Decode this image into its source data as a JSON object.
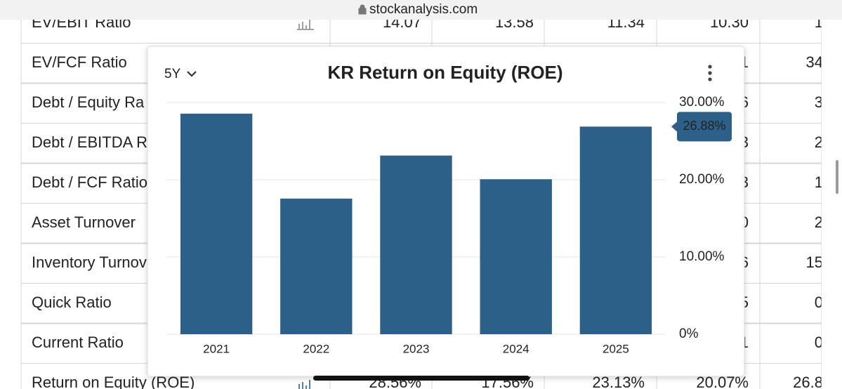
{
  "browser": {
    "url": "stockanalysis.com"
  },
  "table": {
    "rows": [
      {
        "label": "EV/EBIT Ratio",
        "cells": [
          "14.07",
          "13.58",
          "11.34",
          "10.30",
          "1"
        ]
      },
      {
        "label": "EV/FCF Ratio",
        "cells": [
          null,
          null,
          null,
          "1",
          "34"
        ]
      },
      {
        "label": "Debt / Equity Ra",
        "cells": [
          null,
          null,
          null,
          "6",
          "3"
        ]
      },
      {
        "label": "Debt / EBITDA R",
        "cells": [
          null,
          null,
          null,
          "3",
          "2"
        ]
      },
      {
        "label": "Debt / FCF Ratio",
        "cells": [
          null,
          null,
          null,
          "3",
          "1"
        ]
      },
      {
        "label": "Asset Turnover",
        "cells": [
          null,
          null,
          null,
          "0",
          "2"
        ]
      },
      {
        "label": "Inventory Turnov",
        "cells": [
          null,
          null,
          null,
          "6",
          "15"
        ]
      },
      {
        "label": "Quick Ratio",
        "cells": [
          null,
          null,
          null,
          "5",
          "0"
        ]
      },
      {
        "label": "Current Ratio",
        "cells": [
          null,
          null,
          null,
          "1",
          "0"
        ]
      },
      {
        "label": "Return on Equity (ROE)",
        "cells": [
          "28.56%",
          "17.56%",
          "23.13%",
          "20.07%",
          "26.8"
        ]
      }
    ]
  },
  "chart_data": {
    "type": "bar",
    "title": "KR Return on Equity (ROE)",
    "period": "5Y",
    "categories": [
      "2021",
      "2022",
      "2023",
      "2024",
      "2025"
    ],
    "values": [
      28.56,
      17.56,
      23.13,
      20.07,
      26.88
    ],
    "value_labels": [
      null,
      null,
      null,
      null,
      "26.88%"
    ],
    "color": "#2c6088",
    "ylim": [
      0,
      30
    ],
    "yticks": [
      {
        "value": 0,
        "label": "0%"
      },
      {
        "value": 10,
        "label": "10.00%"
      },
      {
        "value": 20,
        "label": "20.00%"
      },
      {
        "value": 30,
        "label": "30.00%"
      }
    ],
    "grid": true
  }
}
